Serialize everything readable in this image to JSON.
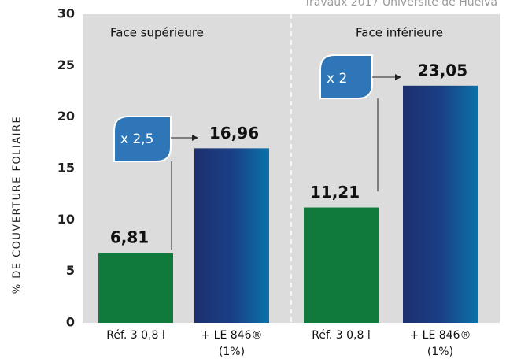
{
  "chart_data": {
    "type": "bar",
    "source": "Travaux 2017 Université de Huelva",
    "y_label": "% DE COUVERTURE FOLIAIRE",
    "groups": [
      "Face supérieure",
      "Face inférieure"
    ],
    "categories": [
      [
        "Réf. 3 0,8 l"
      ],
      [
        "+ LE 846®",
        "(1%)"
      ],
      [
        "Réf. 3 0,8 l"
      ],
      [
        "+ LE 846®",
        "(1%)"
      ]
    ],
    "values": [
      6.81,
      16.96,
      11.21,
      23.05
    ],
    "value_labels": [
      "6,81",
      "16,96",
      "11,21",
      "23,05"
    ],
    "colors": [
      "#0f7a3c",
      "#1d3275",
      "#0f7a3c",
      "#1d3275"
    ],
    "annotations": [
      "x 2,5",
      "x 2"
    ],
    "ylim": [
      0,
      30
    ],
    "yticks": [
      0,
      5,
      10,
      15,
      20,
      25,
      30
    ]
  }
}
